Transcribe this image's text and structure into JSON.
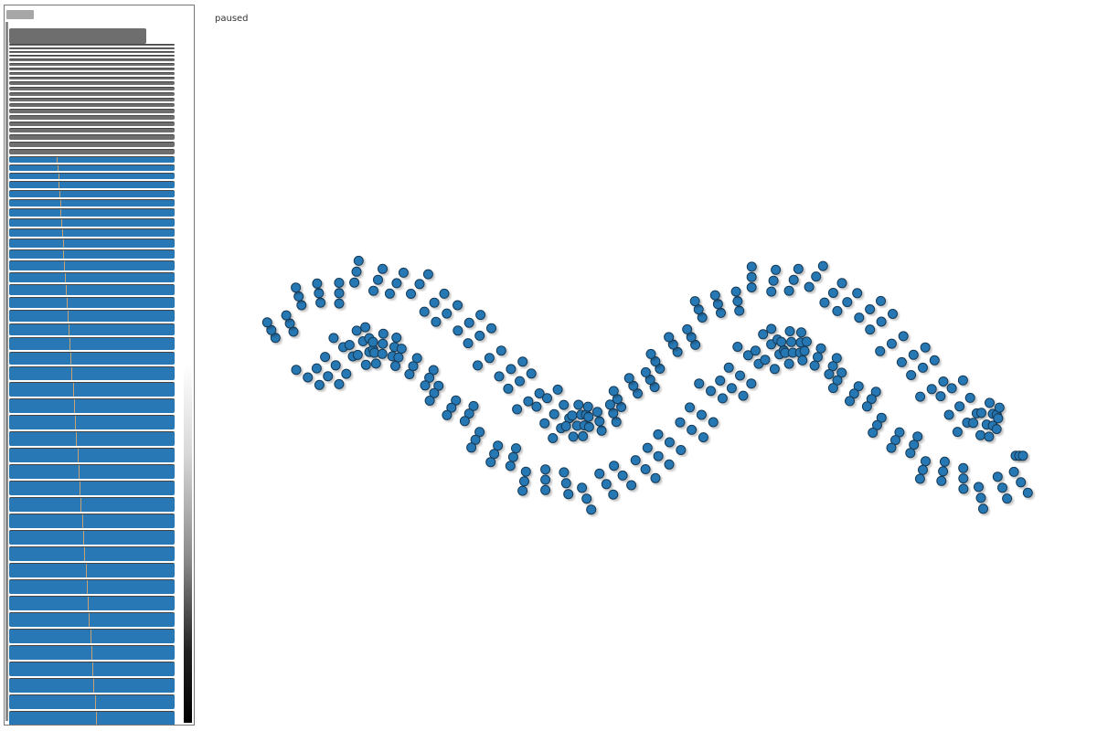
{
  "status": {
    "label": "paused"
  },
  "colors": {
    "node_fill": "#2878b5",
    "node_stroke": "#163a56",
    "bar_blue": "#2878b5",
    "bar_gray": "#6e6e6e"
  },
  "icons": {
    "scale": "gradient-scale-icon"
  }
}
